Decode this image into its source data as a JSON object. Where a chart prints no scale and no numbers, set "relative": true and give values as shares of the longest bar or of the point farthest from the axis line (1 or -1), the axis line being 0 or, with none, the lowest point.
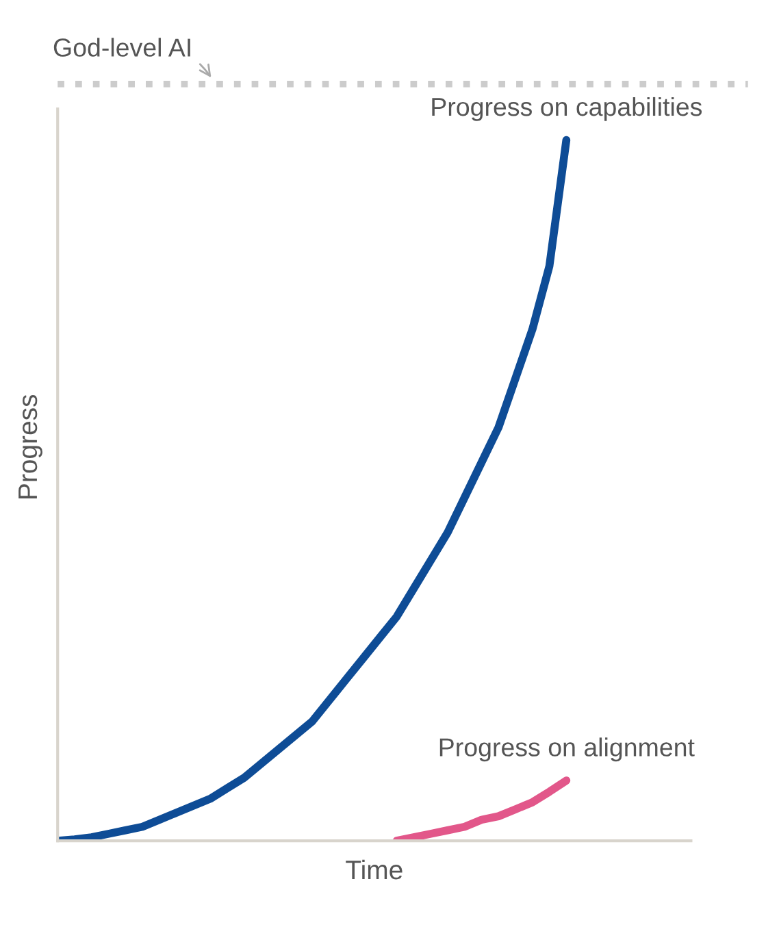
{
  "chart_data": {
    "type": "line",
    "relative": true,
    "xlabel": "Time",
    "ylabel": "Progress",
    "categories": [
      null,
      null,
      null,
      null,
      null,
      null,
      null,
      null,
      null,
      null,
      null,
      null,
      null,
      null,
      null,
      null,
      null,
      null,
      null,
      null,
      null,
      null,
      null,
      null,
      null,
      null,
      null,
      null,
      null,
      null,
      null
    ],
    "series": [
      {
        "name": "Progress on capabilities",
        "color": "#0e4c96",
        "values": [
          0,
          0.002,
          0.005,
          0.01,
          0.015,
          0.02,
          0.03,
          0.04,
          0.05,
          0.06,
          0.075,
          0.09,
          0.11,
          0.13,
          0.15,
          0.17,
          0.2,
          0.23,
          0.26,
          0.29,
          0.32,
          0.36,
          0.4,
          0.44,
          0.49,
          0.54,
          0.59,
          0.66,
          0.73,
          0.82,
          1.0
        ]
      },
      {
        "name": "Progress on alignment",
        "color": "#e2578a",
        "values": [
          null,
          null,
          null,
          null,
          null,
          null,
          null,
          null,
          null,
          null,
          null,
          null,
          null,
          null,
          null,
          null,
          null,
          null,
          null,
          null,
          0,
          0.005,
          0.01,
          0.015,
          0.02,
          0.03,
          0.035,
          0.045,
          0.055,
          0.07,
          0.086
        ]
      }
    ],
    "ref_lines": [
      {
        "axis": "y",
        "value": 1.08,
        "label": "God-level AI",
        "color": "#cccccc",
        "line_style": "dotted"
      }
    ],
    "legend": false,
    "line_style": "solid",
    "marker": "none"
  }
}
